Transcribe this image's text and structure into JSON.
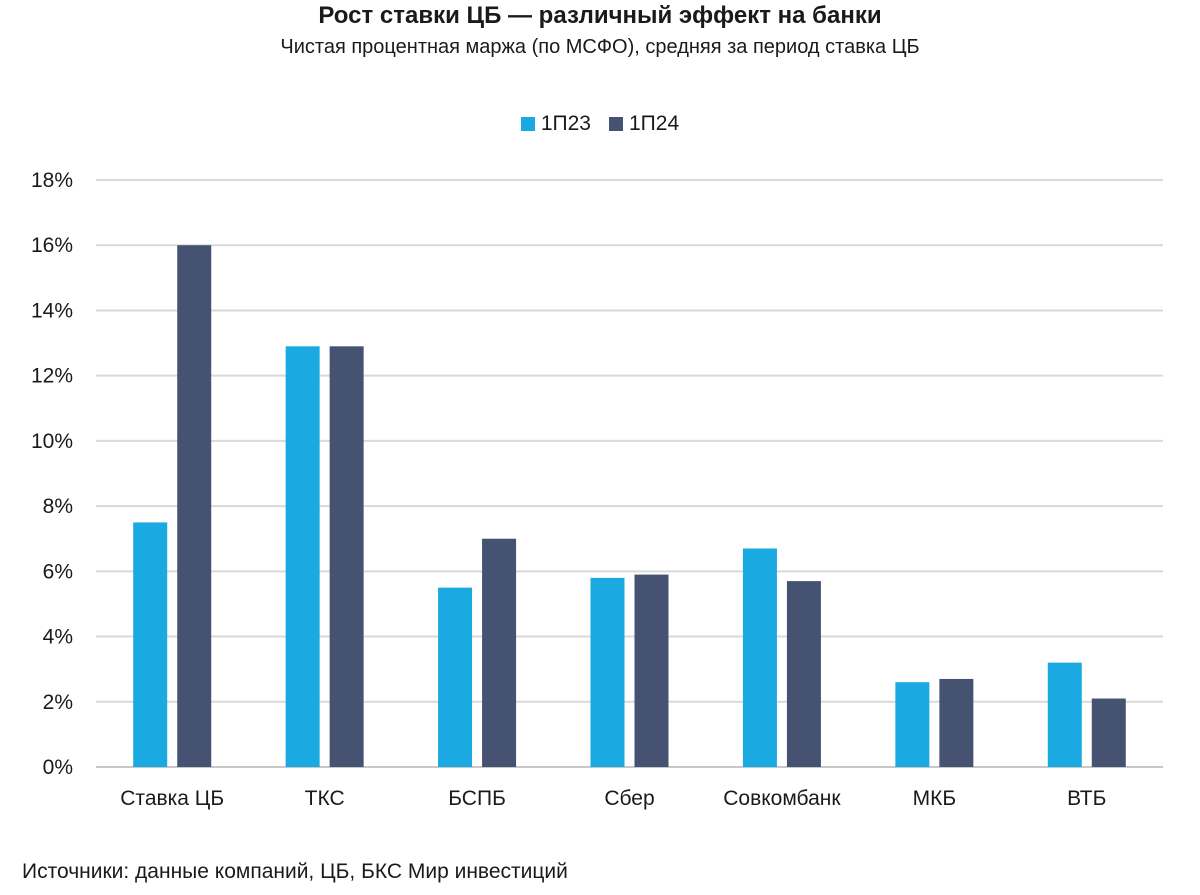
{
  "chart_data": {
    "type": "bar",
    "title": "Рост ставки ЦБ — различный эффект на банки",
    "subtitle": "Чистая процентная маржа (по МСФО), средняя за период ставка ЦБ",
    "categories": [
      "Ставка ЦБ",
      "ТКС",
      "БСПБ",
      "Сбер",
      "Совкомбанк",
      "МКБ",
      "ВТБ"
    ],
    "series": [
      {
        "name": "1П23",
        "color": "#1aa9e0",
        "values": [
          7.5,
          12.9,
          5.5,
          5.8,
          6.7,
          2.6,
          3.2
        ]
      },
      {
        "name": "1П24",
        "color": "#455272",
        "values": [
          16.0,
          12.9,
          7.0,
          5.9,
          5.7,
          2.7,
          2.1
        ]
      }
    ],
    "y_ticks": [
      "0%",
      "2%",
      "4%",
      "6%",
      "8%",
      "10%",
      "12%",
      "14%",
      "16%",
      "18%"
    ],
    "ylim": [
      0,
      18
    ],
    "grid": true,
    "legend_position": "top-center"
  },
  "source": "Источники: данные компаний, ЦБ, БКС Мир инвестиций"
}
